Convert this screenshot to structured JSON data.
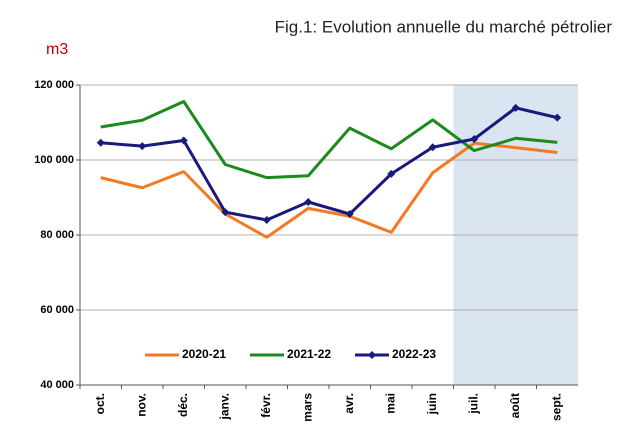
{
  "chart_data": {
    "type": "line",
    "title": "Fig.1: Evolution annuelle du marché pétrolier",
    "y_unit": "m3",
    "categories": [
      "oct.",
      "nov.",
      "déc.",
      "janv.",
      "févr.",
      "mars",
      "avr.",
      "mai",
      "juin",
      "juil.",
      "août",
      "sept."
    ],
    "series": [
      {
        "name": "2020-21",
        "color": "#f47920",
        "values": [
          95300,
          92600,
          96900,
          85600,
          79400,
          87100,
          85000,
          80700,
          96600,
          104500,
          103300,
          102000
        ]
      },
      {
        "name": "2021-22",
        "color": "#1e8a1e",
        "values": [
          108800,
          110600,
          115600,
          98800,
          95300,
          95800,
          108500,
          103000,
          110700,
          102500,
          105800,
          104700
        ]
      },
      {
        "name": "2022-23",
        "color": "#1a1a7a",
        "marker": "diamond",
        "values": [
          104600,
          103700,
          105200,
          86100,
          84000,
          88800,
          85600,
          96300,
          103400,
          105600,
          113900,
          111300
        ]
      }
    ],
    "ylim": [
      40000,
      120000
    ],
    "yticks": [
      {
        "value": 40000,
        "label": "40 000"
      },
      {
        "value": 60000,
        "label": "60 000"
      },
      {
        "value": 80000,
        "label": "80 000"
      },
      {
        "value": 100000,
        "label": "100 000"
      },
      {
        "value": 120000,
        "label": "120 000"
      }
    ],
    "grid": true,
    "legend": "bottom"
  }
}
